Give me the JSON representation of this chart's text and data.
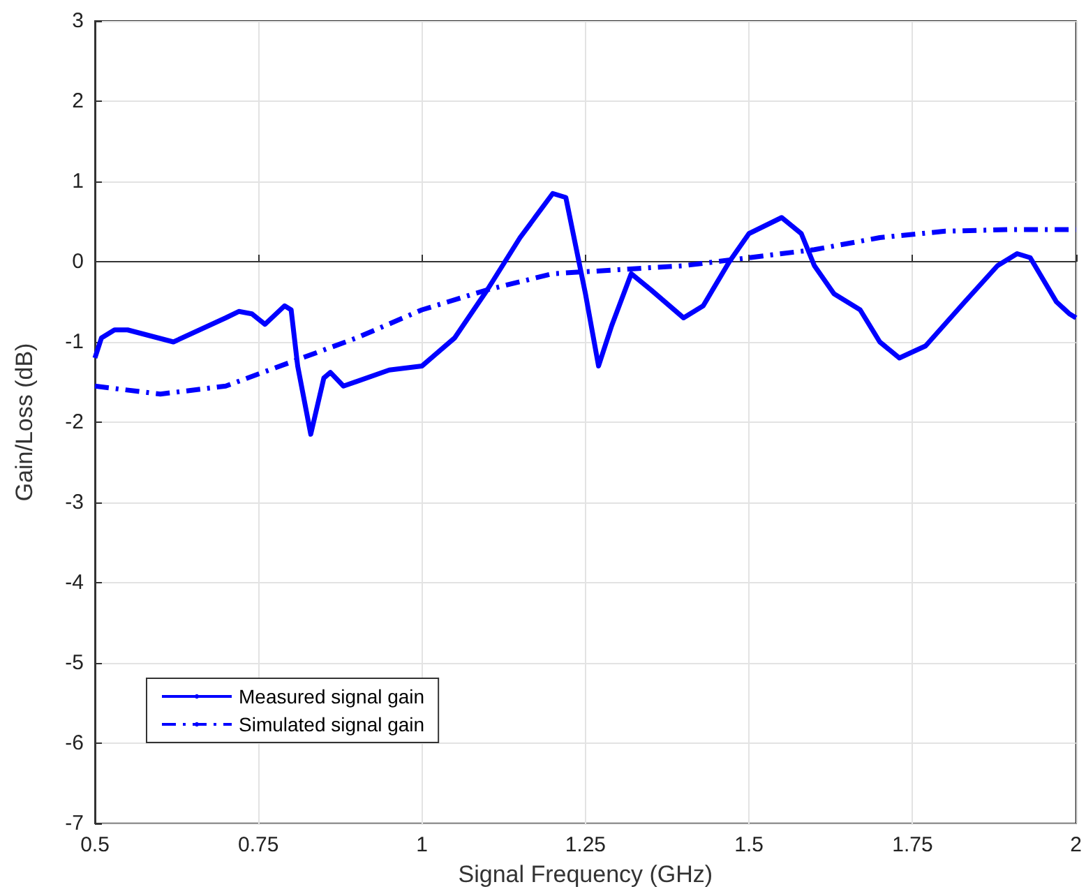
{
  "chart_data": {
    "type": "line",
    "xlabel": "Signal Frequency (GHz)",
    "ylabel": "Gain/Loss (dB)",
    "xlim": [
      0.5,
      2
    ],
    "xticks": [
      0.5,
      0.75,
      1,
      1.25,
      1.5,
      1.75,
      2
    ],
    "ylim": [
      -7,
      3
    ],
    "yticks": [
      -7,
      -6,
      -5,
      -4,
      -3,
      -2,
      -1,
      0,
      1,
      2,
      3
    ],
    "grid": true,
    "legend": "bottom left",
    "marker": "none",
    "series": [
      {
        "name": "Measured signal gain",
        "color": "#0000ff",
        "line_style": "solid",
        "x": [
          0.5,
          0.51,
          0.53,
          0.55,
          0.62,
          0.7,
          0.72,
          0.74,
          0.76,
          0.79,
          0.8,
          0.81,
          0.83,
          0.85,
          0.86,
          0.88,
          0.95,
          1.0,
          1.05,
          1.1,
          1.15,
          1.2,
          1.22,
          1.25,
          1.27,
          1.29,
          1.32,
          1.35,
          1.4,
          1.43,
          1.47,
          1.5,
          1.55,
          1.58,
          1.6,
          1.63,
          1.67,
          1.7,
          1.73,
          1.77,
          1.83,
          1.88,
          1.91,
          1.93,
          1.97,
          1.99,
          2.0
        ],
        "values": [
          -1.2,
          -0.95,
          -0.85,
          -0.85,
          -1.0,
          -0.7,
          -0.62,
          -0.65,
          -0.78,
          -0.55,
          -0.6,
          -1.3,
          -2.15,
          -1.45,
          -1.38,
          -1.55,
          -1.35,
          -1.3,
          -0.95,
          -0.35,
          0.3,
          0.85,
          0.8,
          -0.4,
          -1.3,
          -0.8,
          -0.15,
          -0.35,
          -0.7,
          -0.55,
          0.0,
          0.35,
          0.55,
          0.35,
          -0.05,
          -0.4,
          -0.6,
          -1.0,
          -1.2,
          -1.05,
          -0.5,
          -0.05,
          0.1,
          0.05,
          -0.5,
          -0.65,
          -0.7
        ]
      },
      {
        "name": "Simulated signal gain",
        "color": "#0000ff",
        "line_style": "dashdot",
        "x": [
          0.5,
          0.6,
          0.7,
          0.8,
          0.9,
          1.0,
          1.1,
          1.2,
          1.3,
          1.4,
          1.5,
          1.6,
          1.7,
          1.8,
          1.9,
          2.0
        ],
        "values": [
          -1.55,
          -1.65,
          -1.55,
          -1.25,
          -0.95,
          -0.6,
          -0.35,
          -0.15,
          -0.1,
          -0.05,
          0.05,
          0.15,
          0.3,
          0.38,
          0.4,
          0.4
        ]
      }
    ]
  }
}
